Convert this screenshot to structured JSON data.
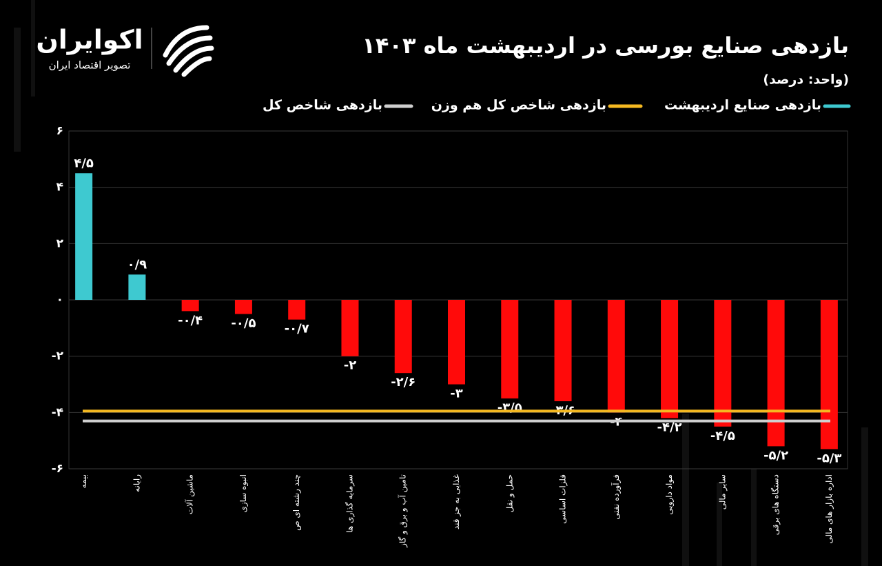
{
  "logo": {
    "name": "اکوایران",
    "tagline": "تصویر اقتصاد ایران"
  },
  "chart_data": {
    "type": "bar",
    "title": "بازدهی صنایع بورسی در اردیبهشت ماه ۱۴۰۳",
    "subtitle": "(واحد: درصد)",
    "categories": [
      "بیمه",
      "رایانه",
      "ماشین آلات",
      "انبوه سازی",
      "چند رشته ای ص",
      "سرمایه گذاری ها",
      "تامین آب و برق و گاز",
      "غذایی به جز قند",
      "حمل و نقل",
      "فلزات اساسی",
      "فرآورده نفتی",
      "مواد دارویی",
      "سایر مالی",
      "دستگاه های برقی",
      "اداره بازار های مالی"
    ],
    "series": [
      {
        "name": "بازدهی صنایع اردیبهشت",
        "color": "#3ec9d0",
        "negative_color": "#ff0a0a",
        "values": [
          4.5,
          0.9,
          -0.4,
          -0.5,
          -0.7,
          -2,
          -2.6,
          -3,
          -3.5,
          -3.6,
          -4,
          -4.2,
          -4.5,
          -5.2,
          -5.3
        ],
        "value_labels": [
          "۴/۵",
          "۰/۹",
          "-۰/۴",
          "-۰/۵",
          "-۰/۷",
          "-۲",
          "-۲/۶",
          "-۳",
          "-۳/۵",
          "-۳/۶",
          "-۴",
          "-۴/۲",
          "-۴/۵",
          "-۵/۲",
          "-۵/۳"
        ]
      }
    ],
    "reference_lines": [
      {
        "name": "بازدهی شاخص کل هم وزن",
        "value": -3.95,
        "color": "#f5b921"
      },
      {
        "name": "بازدهی شاخص کل",
        "value": -4.3,
        "color": "#cfcfcf"
      }
    ],
    "ylim": [
      -6,
      6
    ],
    "yticks": [
      {
        "value": 6,
        "label": "۶"
      },
      {
        "value": 4,
        "label": "۴"
      },
      {
        "value": 2,
        "label": "۲"
      },
      {
        "value": 0,
        "label": "۰"
      },
      {
        "value": -2,
        "label": "-۲"
      },
      {
        "value": -4,
        "label": "-۴"
      },
      {
        "value": -6,
        "label": "-۶"
      }
    ],
    "grid": true
  }
}
